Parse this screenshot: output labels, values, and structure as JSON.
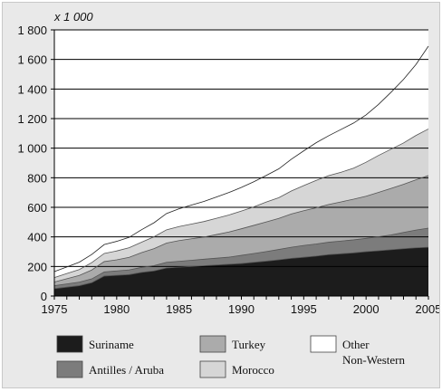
{
  "chart_data": {
    "type": "area",
    "stacked": true,
    "multiplier_label": "x 1 000",
    "x": [
      1975,
      1976,
      1977,
      1978,
      1979,
      1980,
      1981,
      1982,
      1983,
      1984,
      1985,
      1986,
      1987,
      1988,
      1989,
      1990,
      1991,
      1992,
      1993,
      1994,
      1995,
      1996,
      1997,
      1998,
      1999,
      2000,
      2001,
      2002,
      2003,
      2004,
      2005
    ],
    "x_ticks": [
      1975,
      1980,
      1985,
      1990,
      1995,
      2000,
      2005
    ],
    "y_ticks": [
      0,
      200,
      400,
      600,
      800,
      1000,
      1200,
      1400,
      1600,
      1800
    ],
    "y_tick_labels": [
      "0",
      "200",
      "400",
      "600",
      "800",
      "1 000",
      "1 200",
      "1 400",
      "1 600",
      "1 800"
    ],
    "xlim": [
      1975,
      2005
    ],
    "ylim": [
      0,
      1800
    ],
    "grid": "horizontal",
    "legend_position": "bottom",
    "series": [
      {
        "name": "Suriname",
        "color": "#1c1c1c",
        "values": [
          50,
          60,
          70,
          90,
          135,
          140,
          145,
          160,
          170,
          190,
          195,
          200,
          205,
          210,
          215,
          220,
          228,
          236,
          245,
          255,
          262,
          270,
          280,
          286,
          292,
          300,
          306,
          313,
          320,
          326,
          330
        ]
      },
      {
        "name": "Antilles / Aruba",
        "color": "#7c7c7c",
        "values": [
          20,
          22,
          24,
          26,
          28,
          30,
          32,
          34,
          36,
          38,
          40,
          42,
          44,
          46,
          48,
          55,
          60,
          65,
          70,
          75,
          80,
          82,
          84,
          86,
          88,
          90,
          95,
          100,
          110,
          120,
          129
        ]
      },
      {
        "name": "Turkey",
        "color": "#ababab",
        "values": [
          25,
          35,
          45,
          60,
          70,
          75,
          85,
          100,
          115,
          130,
          140,
          145,
          150,
          160,
          170,
          180,
          190,
          200,
          210,
          225,
          235,
          245,
          255,
          265,
          275,
          285,
          300,
          315,
          325,
          340,
          356
        ]
      },
      {
        "name": "Morocco",
        "color": "#d6d6d6",
        "values": [
          30,
          35,
          40,
          50,
          55,
          60,
          65,
          70,
          80,
          90,
          95,
          100,
          105,
          110,
          115,
          120,
          125,
          135,
          140,
          155,
          170,
          185,
          195,
          200,
          210,
          230,
          250,
          265,
          280,
          300,
          315
        ]
      },
      {
        "name": "Other Non-Western",
        "color": "#ffffff",
        "values": [
          40,
          45,
          50,
          55,
          60,
          65,
          70,
          85,
          95,
          110,
          120,
          128,
          136,
          144,
          152,
          160,
          170,
          180,
          195,
          215,
          235,
          255,
          270,
          290,
          305,
          320,
          345,
          385,
          430,
          480,
          560
        ]
      }
    ]
  },
  "legend": {
    "items": [
      {
        "label": "Suriname",
        "lines": [
          "Suriname"
        ],
        "color": "#1c1c1c"
      },
      {
        "label": "Antilles / Aruba",
        "lines": [
          "Antilles / Aruba"
        ],
        "color": "#7c7c7c"
      },
      {
        "label": "Turkey",
        "lines": [
          "Turkey"
        ],
        "color": "#ababab"
      },
      {
        "label": "Morocco",
        "lines": [
          "Morocco"
        ],
        "color": "#d6d6d6"
      },
      {
        "label": "Other Non-Western",
        "lines": [
          "Other",
          "Non-Western"
        ],
        "color": "#ffffff"
      }
    ]
  }
}
